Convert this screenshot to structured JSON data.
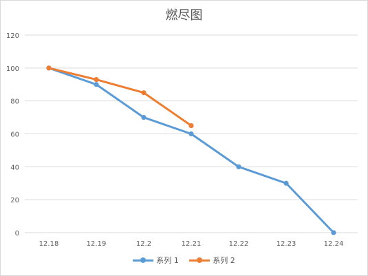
{
  "chart_data": {
    "type": "line",
    "title": "燃尽图",
    "categories": [
      "12.18",
      "12.19",
      "12.2",
      "12.21",
      "12.22",
      "12.23",
      "12.24"
    ],
    "series": [
      {
        "name": "系列 1",
        "color": "#5b9bd5",
        "values": [
          100,
          90,
          70,
          60,
          40,
          30,
          0
        ]
      },
      {
        "name": "系列 2",
        "color": "#ed7d31",
        "values": [
          100,
          93,
          85,
          65,
          null,
          null,
          null
        ]
      }
    ],
    "y_ticks": [
      "0",
      "20",
      "40",
      "60",
      "80",
      "100",
      "120"
    ],
    "ylim": [
      0,
      120
    ],
    "grid": true,
    "legend": "bottom"
  }
}
